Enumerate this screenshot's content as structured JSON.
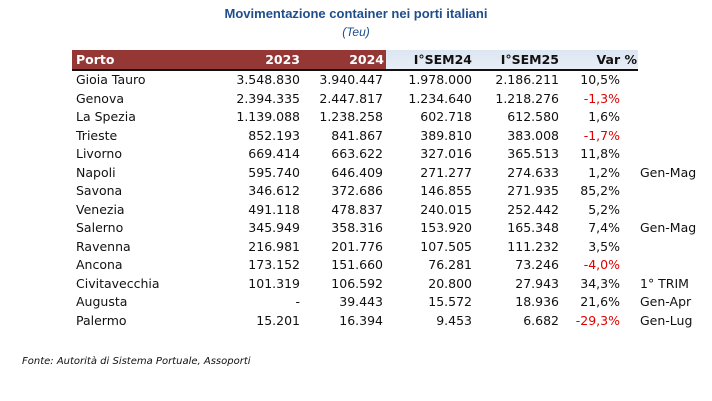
{
  "title": "Movimentazione container nei porti italiani",
  "subtitle": "(Teu)",
  "headers": [
    "Porto",
    "2023",
    "2024",
    "I°SEM24",
    "I°SEM25",
    "Var %"
  ],
  "rows": [
    {
      "porto": "Gioia Tauro",
      "y2023": "3.548.830",
      "y2024": "3.940.447",
      "sem24": "1.978.000",
      "sem25": "2.186.211",
      "var": "10,5%",
      "neg": false,
      "note": ""
    },
    {
      "porto": "Genova",
      "y2023": "2.394.335",
      "y2024": "2.447.817",
      "sem24": "1.234.640",
      "sem25": "1.218.276",
      "var": "-1,3%",
      "neg": true,
      "note": ""
    },
    {
      "porto": "La Spezia",
      "y2023": "1.139.088",
      "y2024": "1.238.258",
      "sem24": "602.718",
      "sem25": "612.580",
      "var": "1,6%",
      "neg": false,
      "note": ""
    },
    {
      "porto": "Trieste",
      "y2023": "852.193",
      "y2024": "841.867",
      "sem24": "389.810",
      "sem25": "383.008",
      "var": "-1,7%",
      "neg": true,
      "note": ""
    },
    {
      "porto": "Livorno",
      "y2023": "669.414",
      "y2024": "663.622",
      "sem24": "327.016",
      "sem25": "365.513",
      "var": "11,8%",
      "neg": false,
      "note": ""
    },
    {
      "porto": "Napoli",
      "y2023": "595.740",
      "y2024": "646.409",
      "sem24": "271.277",
      "sem25": "274.633",
      "var": "1,2%",
      "neg": false,
      "note": "Gen-Mag"
    },
    {
      "porto": "Savona",
      "y2023": "346.612",
      "y2024": "372.686",
      "sem24": "146.855",
      "sem25": "271.935",
      "var": "85,2%",
      "neg": false,
      "note": ""
    },
    {
      "porto": "Venezia",
      "y2023": "491.118",
      "y2024": "478.837",
      "sem24": "240.015",
      "sem25": "252.442",
      "var": "5,2%",
      "neg": false,
      "note": ""
    },
    {
      "porto": "Salerno",
      "y2023": "345.949",
      "y2024": "358.316",
      "sem24": "153.920",
      "sem25": "165.348",
      "var": "7,4%",
      "neg": false,
      "note": "Gen-Mag"
    },
    {
      "porto": "Ravenna",
      "y2023": "216.981",
      "y2024": "201.776",
      "sem24": "107.505",
      "sem25": "111.232",
      "var": "3,5%",
      "neg": false,
      "note": ""
    },
    {
      "porto": "Ancona",
      "y2023": "173.152",
      "y2024": "151.660",
      "sem24": "76.281",
      "sem25": "73.246",
      "var": "-4,0%",
      "neg": true,
      "note": ""
    },
    {
      "porto": "Civitavecchia",
      "y2023": "101.319",
      "y2024": "106.592",
      "sem24": "20.800",
      "sem25": "27.943",
      "var": "34,3%",
      "neg": false,
      "note": "1° TRIM"
    },
    {
      "porto": "Augusta",
      "y2023": "-",
      "y2024": "39.443",
      "sem24": "15.572",
      "sem25": "18.936",
      "var": "21,6%",
      "neg": false,
      "note": "Gen-Apr"
    },
    {
      "porto": "Palermo",
      "y2023": "15.201",
      "y2024": "16.394",
      "sem24": "9.453",
      "sem25": "6.682",
      "var": "-29,3%",
      "neg": true,
      "note": "Gen-Lug"
    }
  ],
  "source": "Fonte:  Autorità di Sistema Portuale, Assoporti",
  "colors": {
    "header_red": "#953735",
    "header_blue": "#dce6f1",
    "title": "#1f4e8c",
    "negative": "#e00000"
  }
}
